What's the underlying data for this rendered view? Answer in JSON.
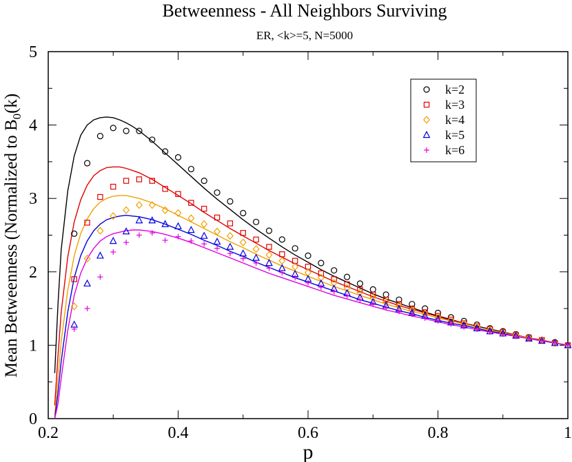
{
  "chart_data": {
    "type": "scatter",
    "title": "Betweenness - All Neighbors Surviving",
    "subtitle": "ER, <k>=5, N=5000",
    "xlabel": "p",
    "ylabel_main": "Mean Betweenness (Normalized to B",
    "ylabel_sub": "0",
    "ylabel_tail": "(k)",
    "xlim": [
      0.2,
      1.0
    ],
    "ylim": [
      0,
      5
    ],
    "xticks": [
      0.2,
      0.4,
      0.6,
      0.8,
      1.0
    ],
    "xtick_labels": [
      "0.2",
      "0.4",
      "0.6",
      "0.8",
      "1"
    ],
    "yticks": [
      0,
      1,
      2,
      3,
      4,
      5
    ],
    "ytick_labels": [
      "0",
      "1",
      "2",
      "3",
      "4",
      "5"
    ],
    "legend_position": "top-right",
    "series": [
      {
        "name": "k=2",
        "marker": "circle",
        "color": "#000000",
        "x": [
          0.24,
          0.26,
          0.28,
          0.3,
          0.32,
          0.34,
          0.36,
          0.38,
          0.4,
          0.42,
          0.44,
          0.46,
          0.48,
          0.5,
          0.52,
          0.54,
          0.56,
          0.58,
          0.6,
          0.62,
          0.64,
          0.66,
          0.68,
          0.7,
          0.72,
          0.74,
          0.76,
          0.78,
          0.8,
          0.82,
          0.84,
          0.86,
          0.88,
          0.9,
          0.92,
          0.94,
          0.96,
          0.98,
          1.0
        ],
        "y": [
          2.52,
          3.48,
          3.85,
          3.96,
          3.92,
          3.92,
          3.8,
          3.64,
          3.56,
          3.4,
          3.24,
          3.08,
          2.96,
          2.8,
          2.68,
          2.56,
          2.44,
          2.32,
          2.22,
          2.12,
          2.02,
          1.93,
          1.84,
          1.76,
          1.69,
          1.62,
          1.56,
          1.5,
          1.44,
          1.38,
          1.33,
          1.28,
          1.23,
          1.19,
          1.15,
          1.11,
          1.07,
          1.04,
          1.0
        ],
        "curve_x": [
          0.21,
          0.215,
          0.22,
          0.23,
          0.24,
          0.25,
          0.26,
          0.27,
          0.28,
          0.29,
          0.3,
          0.31,
          0.32,
          0.33,
          0.34,
          0.36,
          0.38,
          0.4,
          0.42,
          0.44,
          0.46,
          0.48,
          0.5,
          0.52,
          0.54,
          0.56,
          0.58,
          0.6,
          0.62,
          0.64,
          0.66,
          0.68,
          0.7,
          0.72,
          0.74,
          0.76,
          0.78,
          0.8,
          0.82,
          0.84,
          0.86,
          0.88,
          0.9,
          0.92,
          0.94,
          0.96,
          0.98,
          1.0
        ],
        "curve_y": [
          0.62,
          1.55,
          2.3,
          3.1,
          3.58,
          3.86,
          4.0,
          4.07,
          4.1,
          4.11,
          4.1,
          4.07,
          4.03,
          3.98,
          3.92,
          3.78,
          3.62,
          3.46,
          3.3,
          3.14,
          2.99,
          2.85,
          2.71,
          2.58,
          2.46,
          2.34,
          2.23,
          2.13,
          2.03,
          1.94,
          1.86,
          1.78,
          1.7,
          1.63,
          1.57,
          1.51,
          1.45,
          1.4,
          1.35,
          1.3,
          1.26,
          1.22,
          1.18,
          1.14,
          1.1,
          1.07,
          1.03,
          1.0
        ]
      },
      {
        "name": "k=3",
        "marker": "square",
        "color": "#e00000",
        "x": [
          0.24,
          0.26,
          0.28,
          0.3,
          0.32,
          0.34,
          0.36,
          0.38,
          0.4,
          0.42,
          0.44,
          0.46,
          0.48,
          0.5,
          0.52,
          0.54,
          0.56,
          0.58,
          0.6,
          0.62,
          0.64,
          0.66,
          0.68,
          0.7,
          0.72,
          0.74,
          0.76,
          0.78,
          0.8,
          0.82,
          0.84,
          0.86,
          0.88,
          0.9,
          0.92,
          0.94,
          0.96,
          0.98,
          1.0
        ],
        "y": [
          1.9,
          2.67,
          3.02,
          3.16,
          3.24,
          3.26,
          3.24,
          3.13,
          3.06,
          2.94,
          2.86,
          2.74,
          2.66,
          2.53,
          2.44,
          2.34,
          2.24,
          2.15,
          2.07,
          1.98,
          1.9,
          1.83,
          1.76,
          1.69,
          1.62,
          1.56,
          1.5,
          1.45,
          1.4,
          1.35,
          1.3,
          1.26,
          1.22,
          1.18,
          1.14,
          1.1,
          1.07,
          1.03,
          1.0
        ],
        "curve_x": [
          0.21,
          0.215,
          0.22,
          0.23,
          0.24,
          0.25,
          0.26,
          0.27,
          0.28,
          0.29,
          0.3,
          0.31,
          0.32,
          0.33,
          0.34,
          0.36,
          0.38,
          0.4,
          0.42,
          0.44,
          0.46,
          0.48,
          0.5,
          0.52,
          0.54,
          0.56,
          0.58,
          0.6,
          0.62,
          0.64,
          0.66,
          0.68,
          0.7,
          0.72,
          0.74,
          0.76,
          0.78,
          0.8,
          0.82,
          0.84,
          0.86,
          0.88,
          0.9,
          0.92,
          0.94,
          0.96,
          0.98,
          1.0
        ],
        "curve_y": [
          0.18,
          0.85,
          1.45,
          2.2,
          2.68,
          2.98,
          3.18,
          3.31,
          3.38,
          3.42,
          3.43,
          3.43,
          3.41,
          3.38,
          3.35,
          3.26,
          3.15,
          3.04,
          2.93,
          2.81,
          2.7,
          2.59,
          2.49,
          2.39,
          2.29,
          2.2,
          2.11,
          2.03,
          1.95,
          1.87,
          1.8,
          1.73,
          1.66,
          1.6,
          1.54,
          1.49,
          1.44,
          1.39,
          1.34,
          1.3,
          1.25,
          1.21,
          1.17,
          1.14,
          1.1,
          1.07,
          1.03,
          1.0
        ]
      },
      {
        "name": "k=4",
        "marker": "diamond",
        "color": "#f0a000",
        "x": [
          0.24,
          0.26,
          0.28,
          0.3,
          0.32,
          0.34,
          0.36,
          0.38,
          0.4,
          0.42,
          0.44,
          0.46,
          0.48,
          0.5,
          0.52,
          0.54,
          0.56,
          0.58,
          0.6,
          0.62,
          0.64,
          0.66,
          0.68,
          0.7,
          0.72,
          0.74,
          0.76,
          0.78,
          0.8,
          0.82,
          0.84,
          0.86,
          0.88,
          0.9,
          0.92,
          0.94,
          0.96,
          0.98,
          1.0
        ],
        "y": [
          1.53,
          2.18,
          2.56,
          2.76,
          2.84,
          2.91,
          2.91,
          2.84,
          2.8,
          2.73,
          2.65,
          2.55,
          2.49,
          2.4,
          2.31,
          2.23,
          2.15,
          2.07,
          1.99,
          1.92,
          1.85,
          1.78,
          1.72,
          1.65,
          1.59,
          1.54,
          1.48,
          1.43,
          1.38,
          1.34,
          1.29,
          1.25,
          1.21,
          1.17,
          1.14,
          1.1,
          1.07,
          1.03,
          1.0
        ],
        "curve_x": [
          0.21,
          0.215,
          0.22,
          0.23,
          0.24,
          0.25,
          0.26,
          0.27,
          0.28,
          0.29,
          0.3,
          0.31,
          0.32,
          0.33,
          0.34,
          0.36,
          0.38,
          0.4,
          0.42,
          0.44,
          0.46,
          0.48,
          0.5,
          0.52,
          0.54,
          0.56,
          0.58,
          0.6,
          0.62,
          0.64,
          0.66,
          0.68,
          0.7,
          0.72,
          0.74,
          0.76,
          0.78,
          0.8,
          0.82,
          0.84,
          0.86,
          0.88,
          0.9,
          0.92,
          0.94,
          0.96,
          0.98,
          1.0
        ],
        "curve_y": [
          0.05,
          0.55,
          1.05,
          1.75,
          2.22,
          2.52,
          2.72,
          2.86,
          2.95,
          3.0,
          3.03,
          3.04,
          3.04,
          3.02,
          3.0,
          2.94,
          2.86,
          2.77,
          2.68,
          2.59,
          2.5,
          2.41,
          2.33,
          2.24,
          2.16,
          2.08,
          2.01,
          1.94,
          1.87,
          1.8,
          1.74,
          1.68,
          1.62,
          1.56,
          1.51,
          1.46,
          1.42,
          1.37,
          1.33,
          1.29,
          1.25,
          1.21,
          1.17,
          1.13,
          1.1,
          1.06,
          1.03,
          1.0
        ]
      },
      {
        "name": "k=5",
        "marker": "triangle",
        "color": "#0000e0",
        "x": [
          0.24,
          0.26,
          0.28,
          0.3,
          0.32,
          0.34,
          0.36,
          0.38,
          0.4,
          0.42,
          0.44,
          0.46,
          0.48,
          0.5,
          0.52,
          0.54,
          0.56,
          0.58,
          0.6,
          0.62,
          0.64,
          0.66,
          0.68,
          0.7,
          0.72,
          0.74,
          0.76,
          0.78,
          0.8,
          0.82,
          0.84,
          0.86,
          0.88,
          0.9,
          0.92,
          0.94,
          0.96,
          0.98,
          1.0
        ],
        "y": [
          1.28,
          1.84,
          2.22,
          2.42,
          2.55,
          2.7,
          2.7,
          2.65,
          2.62,
          2.57,
          2.49,
          2.41,
          2.34,
          2.25,
          2.19,
          2.12,
          2.05,
          1.97,
          1.9,
          1.84,
          1.77,
          1.71,
          1.65,
          1.59,
          1.54,
          1.49,
          1.44,
          1.4,
          1.35,
          1.31,
          1.27,
          1.23,
          1.19,
          1.16,
          1.13,
          1.09,
          1.06,
          1.03,
          1.0
        ],
        "curve_x": [
          0.21,
          0.215,
          0.22,
          0.23,
          0.24,
          0.25,
          0.26,
          0.27,
          0.28,
          0.29,
          0.3,
          0.31,
          0.32,
          0.33,
          0.34,
          0.36,
          0.38,
          0.4,
          0.42,
          0.44,
          0.46,
          0.48,
          0.5,
          0.52,
          0.54,
          0.56,
          0.58,
          0.6,
          0.62,
          0.64,
          0.66,
          0.68,
          0.7,
          0.72,
          0.74,
          0.76,
          0.78,
          0.8,
          0.82,
          0.84,
          0.86,
          0.88,
          0.9,
          0.92,
          0.94,
          0.96,
          0.98,
          1.0
        ],
        "curve_y": [
          0.0,
          0.35,
          0.78,
          1.45,
          1.92,
          2.22,
          2.42,
          2.56,
          2.65,
          2.71,
          2.74,
          2.76,
          2.77,
          2.76,
          2.75,
          2.71,
          2.65,
          2.58,
          2.51,
          2.43,
          2.36,
          2.28,
          2.21,
          2.13,
          2.06,
          1.99,
          1.92,
          1.86,
          1.8,
          1.74,
          1.68,
          1.62,
          1.57,
          1.52,
          1.47,
          1.43,
          1.38,
          1.34,
          1.3,
          1.27,
          1.23,
          1.19,
          1.16,
          1.12,
          1.09,
          1.06,
          1.03,
          1.0
        ]
      },
      {
        "name": "k=6",
        "marker": "plus",
        "color": "#e000e0",
        "x": [
          0.24,
          0.26,
          0.28,
          0.3,
          0.32,
          0.34,
          0.36,
          0.38,
          0.4,
          0.42,
          0.44,
          0.46,
          0.48,
          0.5,
          0.52,
          0.54,
          0.56,
          0.58,
          0.6,
          0.62,
          0.64,
          0.66,
          0.68,
          0.7,
          0.72,
          0.74,
          0.76,
          0.78,
          0.8,
          0.82,
          0.84,
          0.86,
          0.88,
          0.9,
          0.92,
          0.94,
          0.96,
          0.98,
          1.0
        ],
        "y": [
          1.22,
          1.5,
          1.93,
          2.27,
          2.4,
          2.5,
          2.53,
          2.43,
          2.48,
          2.42,
          2.38,
          2.32,
          2.25,
          2.18,
          2.12,
          2.05,
          1.99,
          1.92,
          1.85,
          1.79,
          1.73,
          1.67,
          1.62,
          1.56,
          1.51,
          1.46,
          1.42,
          1.37,
          1.33,
          1.29,
          1.25,
          1.22,
          1.18,
          1.15,
          1.12,
          1.09,
          1.06,
          1.03,
          1.0
        ],
        "curve_x": [
          0.21,
          0.215,
          0.22,
          0.23,
          0.24,
          0.25,
          0.26,
          0.27,
          0.28,
          0.29,
          0.3,
          0.31,
          0.32,
          0.33,
          0.34,
          0.36,
          0.38,
          0.4,
          0.42,
          0.44,
          0.46,
          0.48,
          0.5,
          0.52,
          0.54,
          0.56,
          0.58,
          0.6,
          0.62,
          0.64,
          0.66,
          0.68,
          0.7,
          0.72,
          0.74,
          0.76,
          0.78,
          0.8,
          0.82,
          0.84,
          0.86,
          0.88,
          0.9,
          0.92,
          0.94,
          0.96,
          0.98,
          1.0
        ],
        "curve_y": [
          0.0,
          0.2,
          0.55,
          1.2,
          1.68,
          1.98,
          2.18,
          2.32,
          2.42,
          2.48,
          2.52,
          2.54,
          2.56,
          2.57,
          2.57,
          2.55,
          2.51,
          2.46,
          2.4,
          2.33,
          2.26,
          2.19,
          2.12,
          2.05,
          1.98,
          1.92,
          1.86,
          1.8,
          1.74,
          1.68,
          1.63,
          1.58,
          1.53,
          1.48,
          1.44,
          1.4,
          1.36,
          1.32,
          1.28,
          1.25,
          1.21,
          1.18,
          1.15,
          1.12,
          1.09,
          1.06,
          1.03,
          1.0
        ]
      }
    ]
  }
}
